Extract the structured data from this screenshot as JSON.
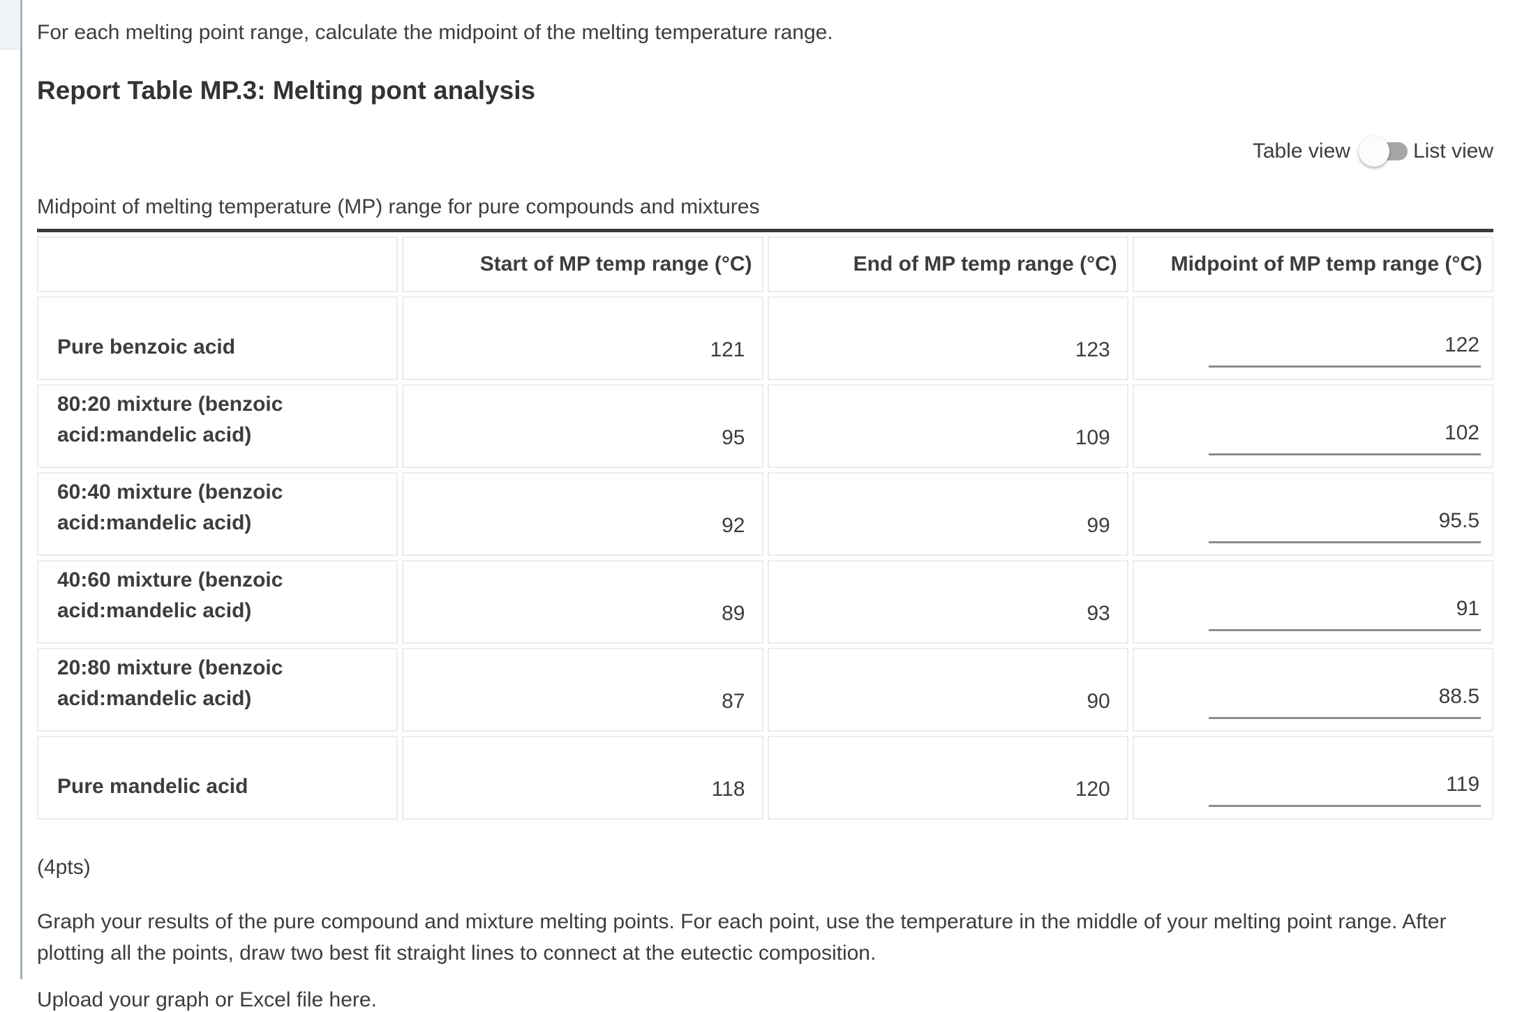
{
  "page": {
    "intro": "For each melting point range, calculate the midpoint of the melting temperature range.",
    "heading": "Report Table MP.3: Melting pont analysis",
    "view_toggle": {
      "left_label": "Table view",
      "right_label": "List view",
      "selected": "Table view"
    },
    "table_caption": "Midpoint of melting temperature (MP) range for pure compounds and mixtures",
    "points_note": "(4pts)",
    "graph_instruction": "Graph your results of the pure compound and mixture melting points. For each point, use the temperature in the middle of your melting point range. After plotting all the points, draw two best fit straight lines to connect at the eutectic composition.",
    "upload_prompt": "Upload your graph or Excel file here."
  },
  "table": {
    "columns": [
      "",
      "Start of MP temp range (°C)",
      "End of MP temp range (°C)",
      "Midpoint of MP temp range (°C)"
    ],
    "rows": [
      {
        "label": "Pure benzoic acid",
        "start": "121",
        "end": "123",
        "midpoint": "122"
      },
      {
        "label": "80:20 mixture (benzoic\nacid:mandelic acid)",
        "start": "95",
        "end": "109",
        "midpoint": "102"
      },
      {
        "label": "60:40 mixture (benzoic\nacid:mandelic acid)",
        "start": "92",
        "end": "99",
        "midpoint": "95.5"
      },
      {
        "label": "40:60 mixture (benzoic\nacid:mandelic acid)",
        "start": "89",
        "end": "93",
        "midpoint": "91"
      },
      {
        "label": "20:80 mixture (benzoic\nacid:mandelic acid)",
        "start": "87",
        "end": "90",
        "midpoint": "88.5"
      },
      {
        "label": "Pure mandelic acid",
        "start": "118",
        "end": "120",
        "midpoint": "119"
      }
    ]
  },
  "colors": {
    "text": "#3d3d3d",
    "table_top_border": "#3a3a38",
    "cell_border": "#edece7",
    "input_underline": "#8c8c8c",
    "toggle_track": "#a6a6a6",
    "toggle_knob": "#fcfcfc",
    "left_rule": "#a5afb5",
    "left_strip": "#eef3f6"
  }
}
